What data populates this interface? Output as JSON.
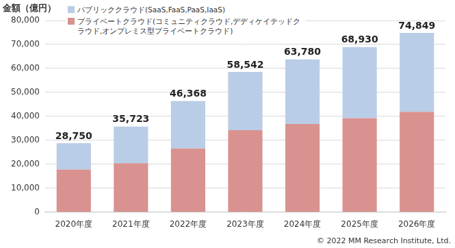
{
  "chart_data": {
    "type": "bar",
    "y_label": "金額（億円）",
    "source": "© 2022 MM Research Institute, Ltd.",
    "categories": [
      "2020年度",
      "2021年度",
      "2022年度",
      "2023年度",
      "2024年度",
      "2025年度",
      "2026年度"
    ],
    "series": [
      {
        "name": "パブリッククラウド(SaaS,FaaS,PaaS,IaaS)",
        "color": "#b9cde6",
        "values": [
          10950,
          15323,
          19768,
          24342,
          26980,
          29730,
          32949
        ]
      },
      {
        "name": "プライベートクラウド(コミュニティクラウド,デディケイテッドクラウド,オンプレミス型プライベートクラウド)",
        "color": "#d9928f",
        "values": [
          17800,
          20400,
          26600,
          34200,
          36800,
          39200,
          41900
        ]
      }
    ],
    "totals": [
      28750,
      35723,
      46368,
      58542,
      63780,
      68930,
      74849
    ],
    "total_labels": [
      "28,750",
      "35,723",
      "46,368",
      "58,542",
      "63,780",
      "68,930",
      "74,849"
    ],
    "ylim": [
      0,
      80000
    ],
    "yticks": [
      0,
      {
        "value": 10000,
        "label": "10,000"
      },
      {
        "value": 20000,
        "label": "20,000"
      },
      {
        "value": 30000,
        "label": "30,000"
      },
      {
        "value": 40000,
        "label": "40,000"
      },
      {
        "value": 50000,
        "label": "50,000"
      },
      {
        "value": 60000,
        "label": "60,000"
      },
      {
        "value": 70000,
        "label": "70,000"
      },
      {
        "value": 80000,
        "label": "80,000"
      }
    ],
    "stacked": true,
    "grid": true,
    "legend": "top-left"
  }
}
